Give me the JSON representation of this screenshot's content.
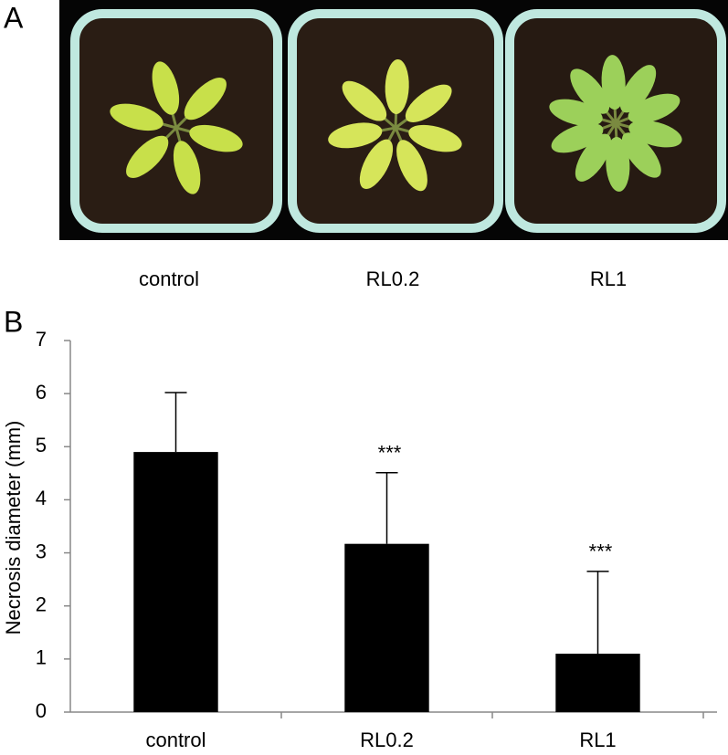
{
  "panel_a": {
    "label": "A",
    "photo_labels": [
      "control",
      "RL0.2",
      "RL1"
    ]
  },
  "chart_data": {
    "type": "bar",
    "panel_label": "B",
    "y_label": "Necrosis diameter (mm)",
    "categories": [
      "control",
      "RL0.2",
      "RL1"
    ],
    "values": [
      4.9,
      3.17,
      1.1
    ],
    "errors": [
      1.12,
      1.34,
      1.55
    ],
    "annotations": [
      null,
      "***",
      "***"
    ],
    "color": "#000000",
    "ylim": [
      0,
      7
    ],
    "yticks": [
      0,
      1,
      2,
      3,
      4,
      5,
      6,
      7
    ],
    "grid": false
  }
}
